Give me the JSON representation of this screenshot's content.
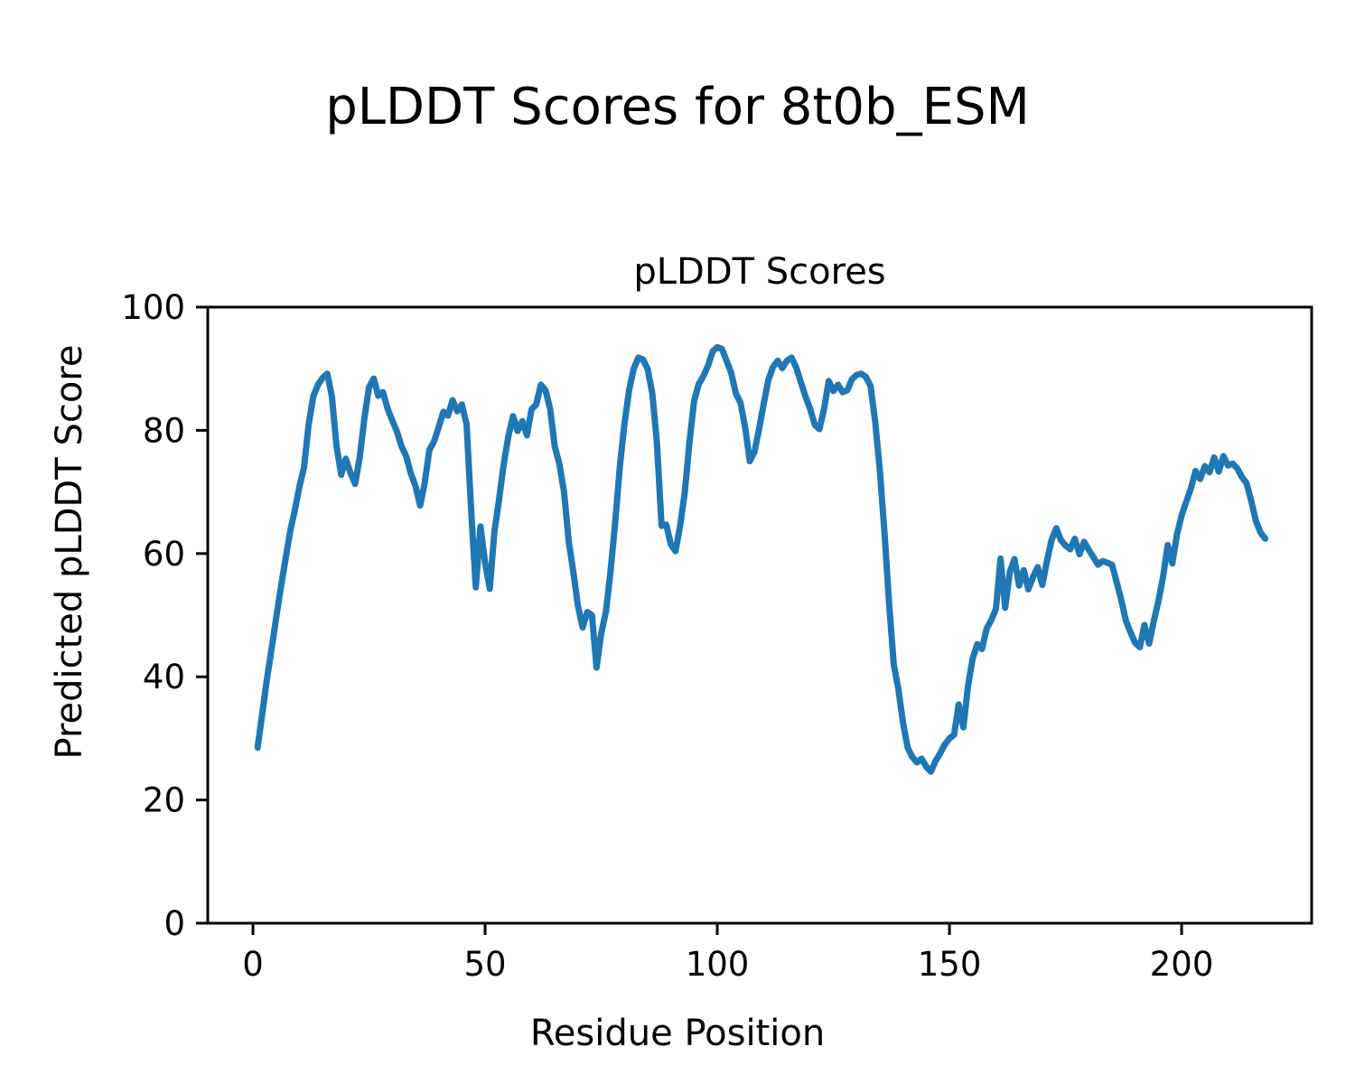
{
  "chart_data": {
    "type": "line",
    "suptitle": "pLDDT Scores for 8t0b_ESM",
    "title": "pLDDT Scores",
    "xlabel": "Residue Position",
    "ylabel": "Predicted pLDDT Score",
    "xlim": [
      -9.73,
      228.0
    ],
    "ylim": [
      0,
      100
    ],
    "xticks": [
      0,
      50,
      100,
      150,
      200
    ],
    "yticks": [
      0,
      20,
      40,
      60,
      80,
      100
    ],
    "grid": false,
    "legend": "none",
    "line_color": "#1f77b4",
    "axis_color": "#000000",
    "series": [
      {
        "name": "pLDDT",
        "x_start": 1,
        "x_step": 1,
        "values": [
          28.5,
          34,
          39.5,
          44.5,
          49.5,
          54.5,
          59,
          63.5,
          67,
          70.8,
          74,
          81,
          85.5,
          87.4,
          88.5,
          89.2,
          85.5,
          77.5,
          72.8,
          75.4,
          73.1,
          71.3,
          75.6,
          82,
          87,
          88.4,
          85.6,
          86.2,
          83.5,
          81.6,
          79.8,
          77.4,
          75.8,
          73,
          71,
          67.8,
          71.5,
          76.8,
          78.2,
          80.5,
          83,
          82.4,
          84.9,
          83.1,
          84.2,
          81,
          67,
          54.5,
          64.4,
          58.5,
          54.3,
          63.5,
          68.8,
          74.5,
          79,
          82.3,
          79.9,
          81.5,
          79.2,
          83.4,
          84.2,
          87.4,
          86.5,
          83.5,
          77.4,
          74.5,
          70,
          62,
          57,
          51.5,
          48,
          50.5,
          50,
          41.5,
          47,
          50.5,
          57,
          65,
          74,
          81,
          86.5,
          90,
          91.8,
          91.5,
          90,
          86,
          78,
          64.5,
          64.7,
          61.5,
          60.4,
          64.5,
          70,
          78,
          84.7,
          87.5,
          88.8,
          90.5,
          92.8,
          93.5,
          93.2,
          91.3,
          89.3,
          86,
          84.5,
          80.5,
          75,
          76.5,
          80.2,
          84.3,
          88.2,
          90.3,
          91.3,
          90.1,
          91.3,
          91.8,
          90.2,
          87.8,
          85.5,
          83.5,
          80.9,
          80.2,
          83.5,
          88,
          86.4,
          87.4,
          86.2,
          86.5,
          88.3,
          89,
          89.2,
          88.7,
          87.2,
          81.5,
          73.5,
          63.5,
          52,
          42,
          38,
          32.5,
          28.5,
          27,
          26.1,
          26.7,
          25.4,
          24.6,
          26.3,
          27.6,
          29,
          30,
          30.6,
          35.5,
          31.8,
          38.5,
          43,
          45.3,
          44.5,
          47.8,
          49.2,
          51,
          59.2,
          51.2,
          57,
          59.1,
          54.8,
          57.3,
          54.2,
          56.2,
          57.8,
          54.9,
          58.8,
          62.2,
          64.1,
          62.2,
          61.3,
          60.7,
          62.4,
          59.9,
          61.9,
          60.6,
          59.4,
          58.2,
          58.8,
          58.5,
          58.2,
          55.4,
          52.5,
          49.1,
          47.2,
          45.5,
          44.8,
          48.4,
          45.4,
          49,
          52.3,
          56.2,
          61.4,
          58.4,
          63.1,
          66.2,
          68.4,
          70.6,
          73.4,
          72.1,
          74.2,
          73.2,
          75.6,
          73.3,
          75.8,
          74.3,
          74.6,
          73.8,
          72.4,
          71.4,
          68.5,
          65.3,
          63.4,
          62.4
        ]
      }
    ]
  }
}
